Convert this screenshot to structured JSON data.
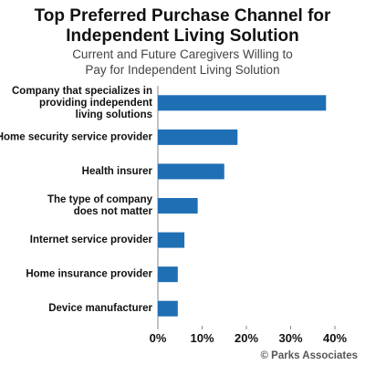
{
  "chart_data": {
    "type": "barh",
    "title": "Top Preferred Purchase Channel for\nIndependent Living Solution",
    "subtitle": "Current and Future Caregivers Willing to\nPay for Independent Living Solution",
    "categories": [
      "Company that specializes in\nproviding independent\nliving solutions",
      "Home security service provider",
      "Health insurer",
      "The type of company\ndoes not matter",
      "Internet service provider",
      "Home insurance provider",
      "Device manufacturer"
    ],
    "values": [
      38,
      18,
      15,
      9,
      6,
      4.5,
      4.5
    ],
    "color": "#1f6fb5",
    "xlim": [
      0,
      40
    ],
    "xticks": [
      {
        "value": 0,
        "label": "0%"
      },
      {
        "value": 10,
        "label": "10%"
      },
      {
        "value": 20,
        "label": "20%"
      },
      {
        "value": 30,
        "label": "30%"
      },
      {
        "value": 40,
        "label": "40%"
      }
    ],
    "source": "© Parks Associates"
  }
}
